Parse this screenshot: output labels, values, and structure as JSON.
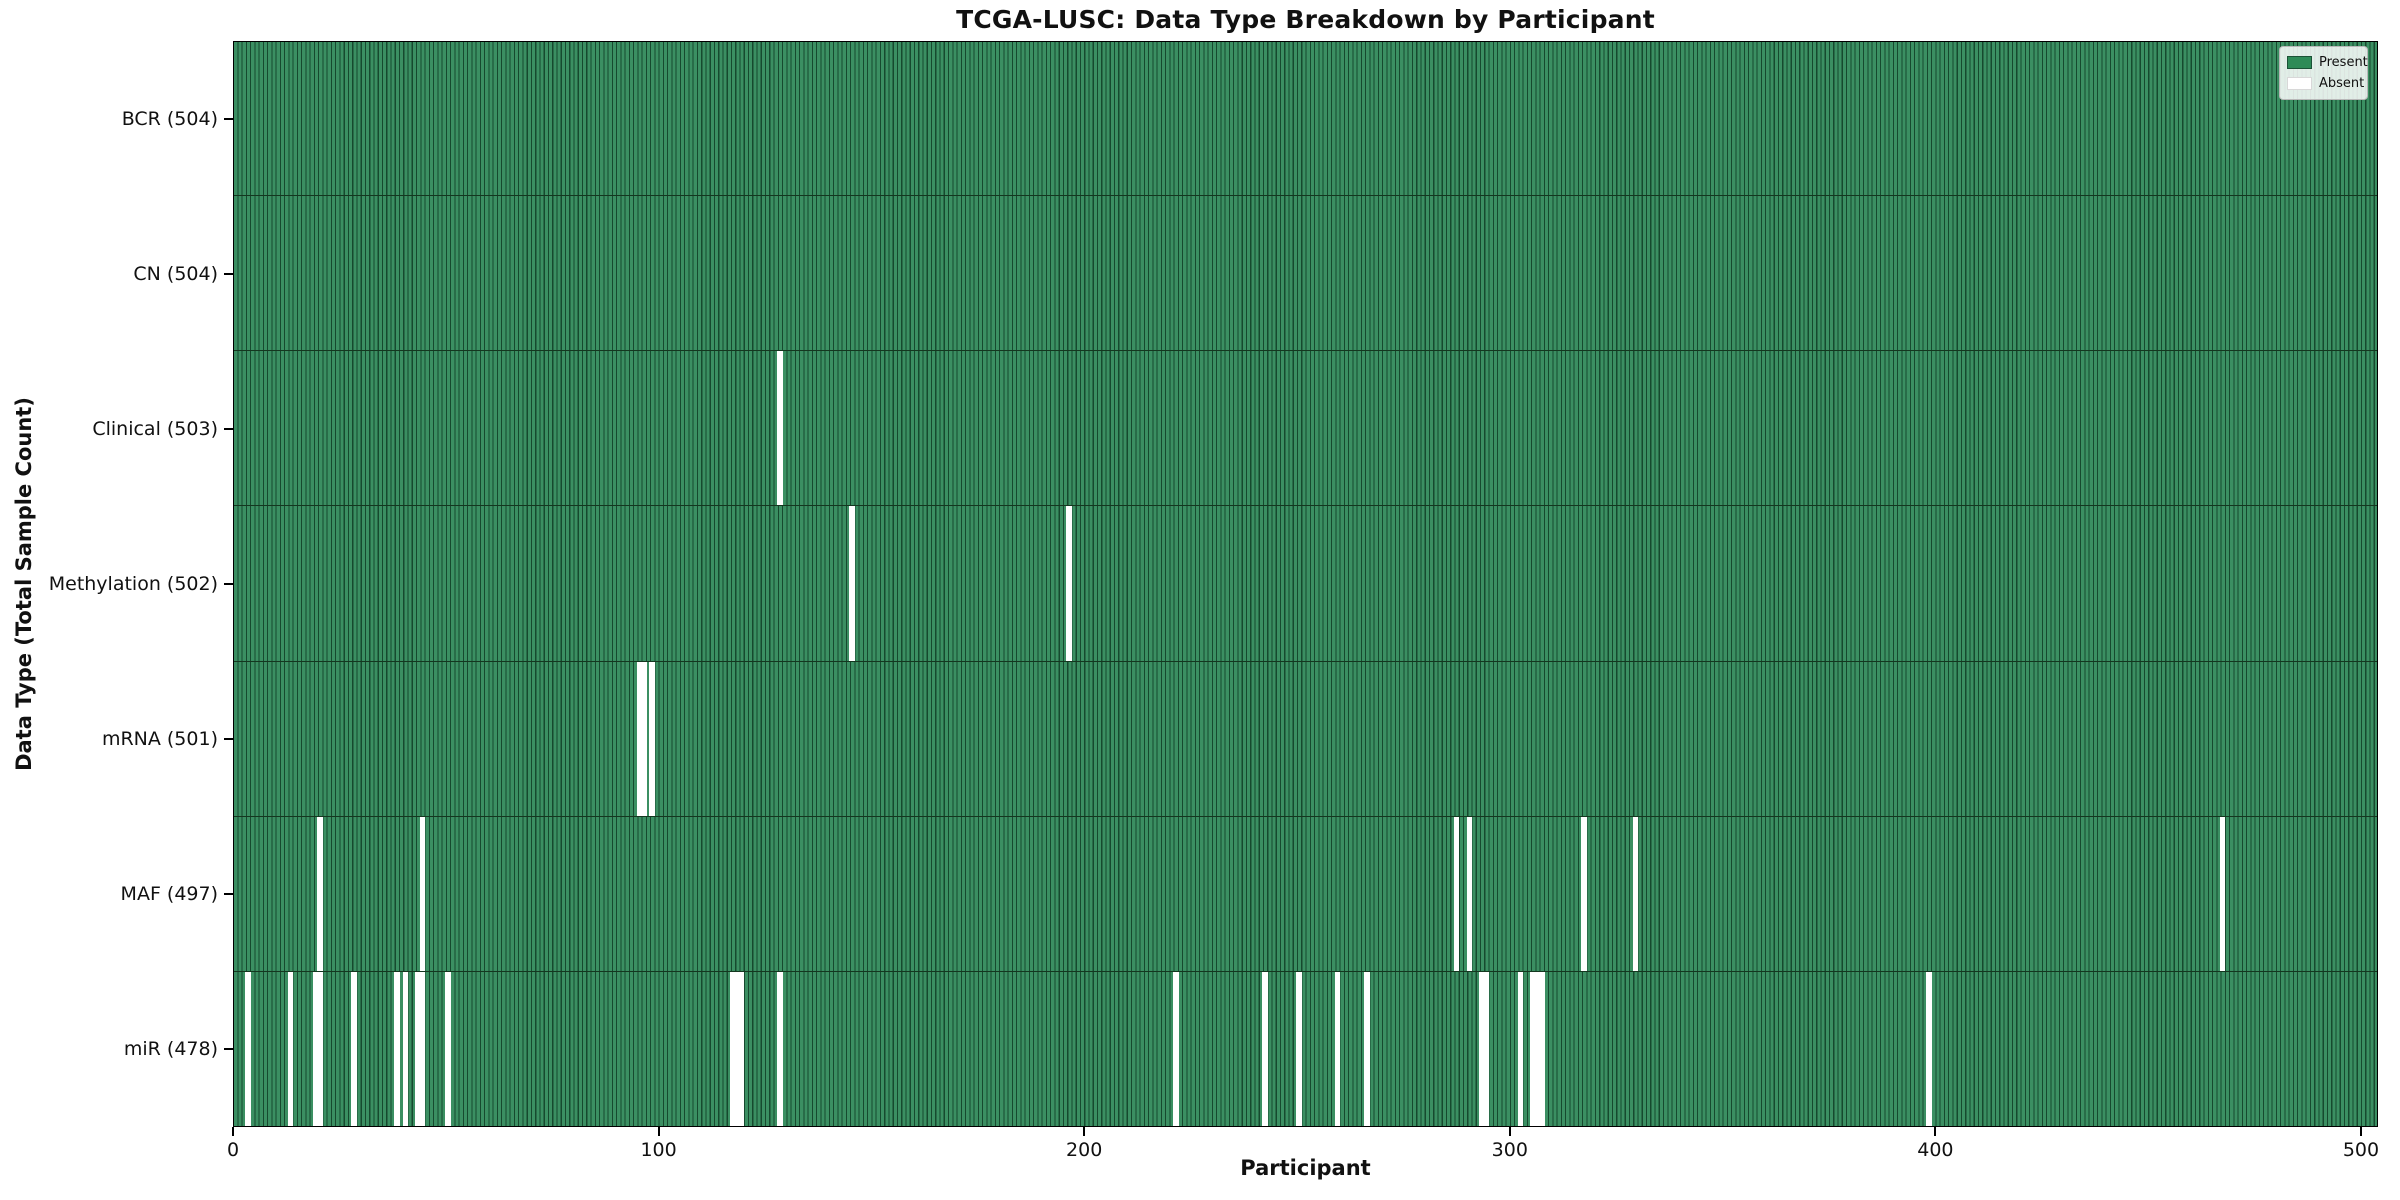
{
  "title": "TCGA-LUSC: Data Type Breakdown by Participant",
  "xlabel": "Participant",
  "ylabel": "Data Type (Total Sample Count)",
  "n_participants": 504,
  "x_ticks": [
    0,
    100,
    200,
    300,
    400,
    500
  ],
  "legend": {
    "present_label": "Present",
    "absent_label": "Absent",
    "position": "upper right"
  },
  "colors": {
    "present": "#3B8F62",
    "present_edge": "#16492E",
    "absent": "#FFFFFF",
    "legend_present": "#2E8B57",
    "legend_present_edge": "#1B5236",
    "frame": "#000000"
  },
  "chart_data": {
    "type": "heatmap",
    "title": "TCGA-LUSC: Data Type Breakdown by Participant",
    "xlabel": "Participant",
    "ylabel": "Data Type (Total Sample Count)",
    "x_range": [
      0,
      504
    ],
    "x_tick_labels": [
      "0",
      "100",
      "200",
      "300",
      "400",
      "500"
    ],
    "legend_entries": [
      "Present",
      "Absent"
    ],
    "legend_position": "upper right",
    "grid": false,
    "value_encoding": {
      "present": "green cell",
      "absent": "white cell"
    },
    "rows": [
      {
        "name": "BCR",
        "label": "BCR (504)",
        "total": 504,
        "absent_participants": []
      },
      {
        "name": "CN",
        "label": "CN (504)",
        "total": 504,
        "absent_participants": []
      },
      {
        "name": "Clinical",
        "label": "Clinical (503)",
        "total": 503,
        "absent_participants": [
          128
        ]
      },
      {
        "name": "Methylation",
        "label": "Methylation (502)",
        "total": 502,
        "absent_participants": [
          145,
          196
        ]
      },
      {
        "name": "mRNA",
        "label": "mRNA (501)",
        "total": 501,
        "absent_participants": [
          95,
          96,
          98
        ]
      },
      {
        "name": "MAF",
        "label": "MAF (497)",
        "total": 497,
        "absent_participants": [
          20,
          44,
          287,
          290,
          317,
          329,
          467
        ]
      },
      {
        "name": "miR",
        "label": "miR (478)",
        "total": 478,
        "absent_participants": [
          3,
          13,
          19,
          20,
          28,
          38,
          40,
          43,
          44,
          50,
          117,
          118,
          119,
          128,
          221,
          242,
          250,
          259,
          266,
          293,
          294,
          302,
          305,
          306,
          307,
          398
        ]
      }
    ]
  }
}
